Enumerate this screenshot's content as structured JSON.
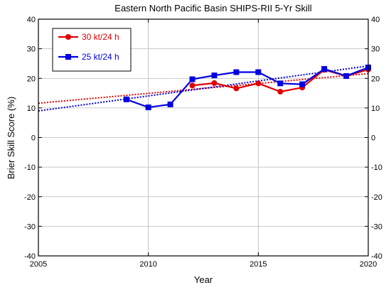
{
  "chart_data": {
    "type": "line",
    "title": "Eastern North Pacific Basin SHIPS-RII 5-Yr Skill",
    "xlabel": "Year",
    "ylabel": "Brier Skill Score (%)",
    "xlim": [
      2005,
      2020
    ],
    "ylim": [
      -40,
      40
    ],
    "xticks": [
      2005,
      2010,
      2015,
      2020
    ],
    "yticks": [
      -40,
      -30,
      -20,
      -10,
      0,
      10,
      20,
      30,
      40
    ],
    "grid": true,
    "legend_position": "top-left",
    "series": [
      {
        "name": "30 kt/24 h",
        "color": "#e00000",
        "marker": "circle",
        "x": [
          2012,
          2013,
          2014,
          2015,
          2016,
          2017,
          2018,
          2019,
          2020
        ],
        "y": [
          17.6,
          18.4,
          16.6,
          18.3,
          15.5,
          16.9,
          22.9,
          20.8,
          23.0
        ],
        "trend": [
          11.6,
          21.6
        ]
      },
      {
        "name": "25 kt/24 h",
        "color": "#0000e0",
        "marker": "square",
        "x": [
          2009,
          2010,
          2011,
          2012,
          2013,
          2014,
          2015,
          2016,
          2017,
          2018,
          2019,
          2020
        ],
        "y": [
          12.9,
          10.2,
          11.2,
          19.7,
          21.0,
          22.1,
          22.1,
          18.3,
          18.0,
          23.2,
          20.8,
          23.7
        ],
        "trend": [
          9.0,
          24.2
        ]
      }
    ]
  }
}
